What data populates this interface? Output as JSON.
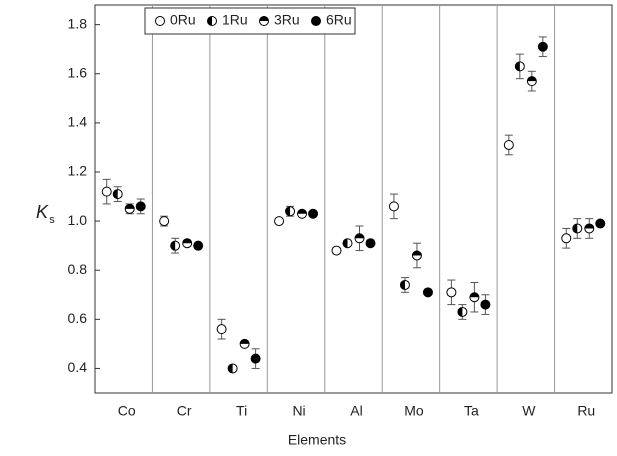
{
  "chart_data": {
    "type": "scatter",
    "x_label": "Elements",
    "y_label": "K",
    "y_label_subscript": "s",
    "categories": [
      "Co",
      "Cr",
      "Ti",
      "Ni",
      "Al",
      "Mo",
      "Ta",
      "W",
      "Ru"
    ],
    "series": [
      {
        "name": "0Ru",
        "color": "#000000",
        "marker": "open",
        "values": [
          1.12,
          1.0,
          0.56,
          1.0,
          0.88,
          1.06,
          0.71,
          1.31,
          0.93
        ],
        "errors": [
          0.05,
          0.02,
          0.04,
          0.01,
          0.01,
          0.05,
          0.05,
          0.04,
          0.04
        ]
      },
      {
        "name": "1Ru",
        "color": "#000000",
        "marker": "half-left",
        "values": [
          1.11,
          0.9,
          0.4,
          1.04,
          0.91,
          0.74,
          0.63,
          1.63,
          0.97
        ],
        "errors": [
          0.03,
          0.03,
          0.01,
          0.02,
          0.01,
          0.03,
          0.03,
          0.05,
          0.04
        ]
      },
      {
        "name": "3Ru",
        "color": "#000000",
        "marker": "half-top",
        "values": [
          1.05,
          0.91,
          0.5,
          1.03,
          0.93,
          0.86,
          0.69,
          1.57,
          0.97
        ],
        "errors": [
          0.02,
          0.01,
          0.01,
          0.01,
          0.05,
          0.05,
          0.06,
          0.04,
          0.04
        ]
      },
      {
        "name": "6Ru",
        "color": "#000000",
        "marker": "filled",
        "values": [
          1.06,
          0.9,
          0.44,
          1.03,
          0.91,
          0.71,
          0.66,
          1.71,
          0.99
        ],
        "errors": [
          0.03,
          0.01,
          0.04,
          0.01,
          0.01,
          0.01,
          0.04,
          0.04,
          0.01
        ]
      }
    ],
    "ylim": [
      0.3,
      1.88
    ],
    "yticks": [
      0.4,
      0.6,
      0.8,
      {
        "value": 1,
        "label": "1.0"
      },
      1.2,
      1.4,
      1.6,
      1.8
    ],
    "legend": "top"
  }
}
